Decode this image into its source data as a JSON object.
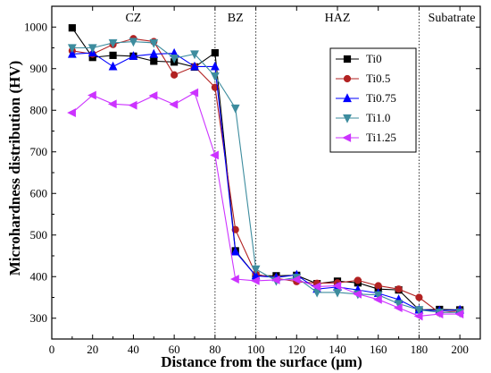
{
  "chart_data": {
    "type": "line",
    "title": "",
    "xlabel": "Distance from the surface (μm)",
    "ylabel": "Microhardness distribution (HV)",
    "xlim": [
      0,
      210
    ],
    "ylim": [
      250,
      1050
    ],
    "xticks": [
      0,
      20,
      40,
      60,
      80,
      100,
      120,
      140,
      160,
      180,
      200
    ],
    "yticks": [
      300,
      400,
      500,
      600,
      700,
      800,
      900,
      1000
    ],
    "grid": false,
    "legend_position": "top-right",
    "zones": [
      {
        "label": "CZ",
        "center": 40
      },
      {
        "label": "BZ",
        "center": 90
      },
      {
        "label": "HAZ",
        "center": 140
      },
      {
        "label": "Subatrate",
        "center": 196
      }
    ],
    "boundaries": [
      80,
      100,
      180
    ],
    "x": [
      10,
      20,
      30,
      40,
      50,
      60,
      70,
      80,
      90,
      100,
      110,
      120,
      130,
      140,
      150,
      160,
      170,
      180,
      190,
      200
    ],
    "series": [
      {
        "name": "Ti0",
        "color": "#000000",
        "marker": "square",
        "values": [
          998,
          927,
          932,
          930,
          918,
          916,
          904,
          938,
          462,
          402,
          402,
          403,
          383,
          389,
          385,
          370,
          368,
          320,
          321,
          320
        ]
      },
      {
        "name": "Ti0.5",
        "color": "#b22222",
        "marker": "circle",
        "values": [
          943,
          935,
          958,
          972,
          965,
          885,
          905,
          855,
          513,
          406,
          396,
          388,
          384,
          385,
          391,
          378,
          370,
          350,
          313,
          318
        ]
      },
      {
        "name": "Ti0.75",
        "color": "#0000ff",
        "marker": "triangle-up",
        "values": [
          935,
          938,
          905,
          930,
          935,
          937,
          905,
          905,
          460,
          402,
          398,
          404,
          370,
          375,
          368,
          360,
          345,
          320,
          318,
          320
        ]
      },
      {
        "name": "Ti1.0",
        "color": "#3d8c9e",
        "marker": "triangle-down",
        "values": [
          950,
          950,
          962,
          965,
          962,
          925,
          935,
          882,
          805,
          418,
          390,
          398,
          362,
          362,
          358,
          356,
          335,
          320,
          314,
          314
        ]
      },
      {
        "name": "Ti1.25",
        "color": "#cc33ff",
        "marker": "triangle-left",
        "values": [
          794,
          836,
          815,
          812,
          835,
          814,
          842,
          692,
          394,
          390,
          392,
          393,
          376,
          378,
          358,
          345,
          325,
          305,
          310,
          310
        ]
      }
    ]
  }
}
